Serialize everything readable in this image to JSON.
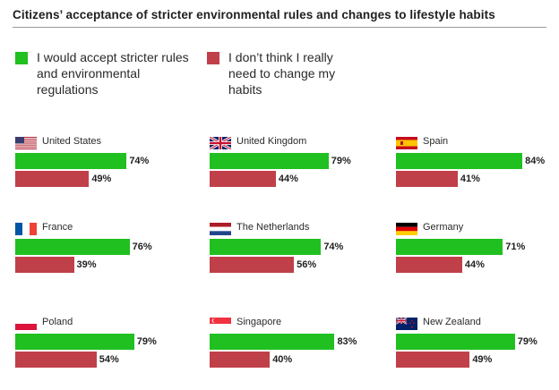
{
  "colors": {
    "accept": "#20c020",
    "change": "#c0404a"
  },
  "chart_data": {
    "type": "bar",
    "title": "Citizens’ acceptance of stricter environmental rules and changes to lifestyle habits",
    "legend": [
      "I would accept stricter rules and environmental regulations",
      "I don’t think I really need to change my habits"
    ],
    "categories": [
      "United States",
      "United Kingdom",
      "Spain",
      "France",
      "The Netherlands",
      "Germany",
      "Poland",
      "Singapore",
      "New Zealand"
    ],
    "series": [
      {
        "name": "I would accept stricter rules and environmental regulations",
        "values": [
          74,
          79,
          84,
          76,
          74,
          71,
          79,
          83,
          79
        ]
      },
      {
        "name": "I don’t think I really need to change my habits",
        "values": [
          49,
          44,
          41,
          39,
          56,
          44,
          54,
          40,
          49
        ]
      }
    ],
    "value_labels": {
      "accept": [
        "74%",
        "79%",
        "84%",
        "76%",
        "74%",
        "71%",
        "79%",
        "83%",
        "79%"
      ],
      "change": [
        "49%",
        "44%",
        "41%",
        "39%",
        "56%",
        "44%",
        "54%",
        "40%",
        "49%"
      ]
    },
    "flags": [
      "us-flag-icon",
      "uk-flag-icon",
      "spain-flag-icon",
      "france-flag-icon",
      "netherlands-flag-icon",
      "germany-flag-icon",
      "poland-flag-icon",
      "singapore-flag-icon",
      "new-zealand-flag-icon"
    ],
    "ylim": [
      0,
      100
    ]
  }
}
